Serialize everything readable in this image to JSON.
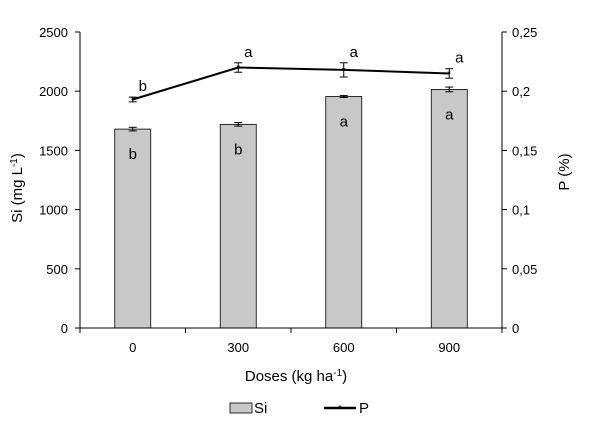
{
  "chart_data": {
    "type": "bar",
    "categories": [
      "0",
      "300",
      "600",
      "900"
    ],
    "xlabel_main": "Doses (kg ha",
    "xlabel_sup": "-1",
    "xlabel_end": ")",
    "ylabel_left_main": "Si (mg L",
    "ylabel_left_sup": "-1",
    "ylabel_left_end": ")",
    "ylabel_right": "P (%)",
    "ylim_left": [
      0,
      2500
    ],
    "yticks_left": [
      "0",
      "500",
      "1000",
      "1500",
      "2000",
      "2500"
    ],
    "ylim_right": [
      0,
      0.25
    ],
    "yticks_right": [
      "0",
      "0,05",
      "0,1",
      "0,15",
      "0,2",
      "0,25"
    ],
    "series": [
      {
        "name": "Si",
        "type": "bar",
        "axis": "left",
        "values": [
          1680,
          1720,
          1955,
          2015
        ],
        "errors": [
          15,
          15,
          8,
          20
        ],
        "letters": [
          "b",
          "b",
          "a",
          "a"
        ],
        "color": "#c8c8c8"
      },
      {
        "name": "P",
        "type": "line",
        "axis": "right",
        "values": [
          0.193,
          0.22,
          0.218,
          0.215
        ],
        "errors": [
          0.002,
          0.004,
          0.006,
          0.004
        ],
        "letters": [
          "b",
          "a",
          "a",
          "a"
        ],
        "color": "#000000"
      }
    ],
    "grid": false,
    "legend_position": "bottom"
  }
}
